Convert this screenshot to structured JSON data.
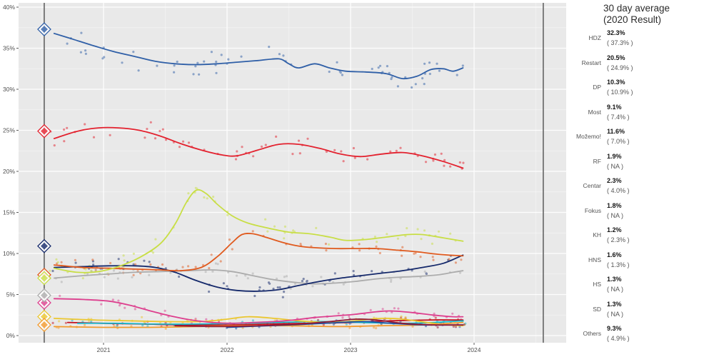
{
  "legend": {
    "title_line1": "30 day average",
    "title_line2": "(2020 Result)"
  },
  "chart_data": {
    "type": "line+scatter",
    "title": "30 day average (2020 Result)",
    "x_ticks": [
      "2021",
      "2022",
      "2023",
      "2024"
    ],
    "y_ticks": [
      "0%",
      "5%",
      "10%",
      "15%",
      "20%",
      "25%",
      "30%",
      "35%",
      "40%"
    ],
    "x_range_years": [
      2020.31,
      2024.75
    ],
    "y_range_pct": [
      0,
      41.3
    ],
    "grid": true,
    "legend_position": "right",
    "election_lines_x": [
      2020.52,
      2024.56
    ],
    "result_2020_x": 2020.52,
    "panel_color": "#e9e9e9",
    "election_line_color": "#636363",
    "series": [
      {
        "name": "HDZ",
        "value_label": "32.3%",
        "result_label": "( 37.3% )",
        "value_pct": 32.3,
        "result_pct": 37.3,
        "color": "#2f5fa7",
        "color_light": "#9fb6d9",
        "points": 62,
        "jitter": 1.7,
        "start": 2020.56,
        "trend": [
          [
            2020.6,
            36.8
          ],
          [
            2020.75,
            36.1
          ],
          [
            2020.92,
            35.3
          ],
          [
            2021.08,
            34.6
          ],
          [
            2021.25,
            34.0
          ],
          [
            2021.42,
            33.4
          ],
          [
            2021.58,
            33.1
          ],
          [
            2021.75,
            33.0
          ],
          [
            2021.92,
            33.1
          ],
          [
            2022.08,
            33.3
          ],
          [
            2022.25,
            33.5
          ],
          [
            2022.42,
            33.7
          ],
          [
            2022.5,
            33.1
          ],
          [
            2022.58,
            32.6
          ],
          [
            2022.71,
            33.1
          ],
          [
            2022.83,
            32.6
          ],
          [
            2022.96,
            32.2
          ],
          [
            2023.12,
            32.1
          ],
          [
            2023.29,
            31.9
          ],
          [
            2023.42,
            31.3
          ],
          [
            2023.54,
            31.6
          ],
          [
            2023.65,
            32.4
          ],
          [
            2023.75,
            32.5
          ],
          [
            2023.83,
            32.2
          ],
          [
            2023.91,
            32.6
          ]
        ]
      },
      {
        "name": "Restart",
        "value_label": "20.5%",
        "result_label": "( 24.9% )",
        "value_pct": 20.5,
        "result_pct": 24.9,
        "color": "#e3212e",
        "color_light": "#f3949e",
        "points": 62,
        "jitter": 1.4,
        "start": 2020.56,
        "trend": [
          [
            2020.6,
            24.0
          ],
          [
            2020.79,
            24.9
          ],
          [
            2020.96,
            25.3
          ],
          [
            2021.12,
            25.3
          ],
          [
            2021.29,
            25.0
          ],
          [
            2021.46,
            24.3
          ],
          [
            2021.62,
            23.4
          ],
          [
            2021.79,
            22.6
          ],
          [
            2021.96,
            22.0
          ],
          [
            2022.08,
            21.9
          ],
          [
            2022.25,
            22.6
          ],
          [
            2022.42,
            23.3
          ],
          [
            2022.58,
            23.3
          ],
          [
            2022.75,
            22.8
          ],
          [
            2022.92,
            22.1
          ],
          [
            2023.08,
            21.8
          ],
          [
            2023.25,
            22.1
          ],
          [
            2023.42,
            22.3
          ],
          [
            2023.58,
            21.9
          ],
          [
            2023.75,
            21.2
          ],
          [
            2023.91,
            20.4
          ]
        ]
      },
      {
        "name": "DP",
        "value_label": "10.3%",
        "result_label": "( 10.9% )",
        "value_pct": 10.3,
        "result_pct": 10.9,
        "color": "#14286a",
        "color_light": "#97a5c6",
        "points": 55,
        "jitter": 1.1,
        "start": 2020.56,
        "trend": [
          [
            2020.6,
            8.3
          ],
          [
            2020.83,
            8.4
          ],
          [
            2021.04,
            8.5
          ],
          [
            2021.25,
            8.5
          ],
          [
            2021.42,
            8.3
          ],
          [
            2021.58,
            7.7
          ],
          [
            2021.75,
            6.7
          ],
          [
            2021.92,
            5.9
          ],
          [
            2022.08,
            5.5
          ],
          [
            2022.25,
            5.4
          ],
          [
            2022.42,
            5.6
          ],
          [
            2022.58,
            6.1
          ],
          [
            2022.75,
            6.6
          ],
          [
            2022.92,
            7.0
          ],
          [
            2023.08,
            7.3
          ],
          [
            2023.25,
            7.6
          ],
          [
            2023.42,
            7.9
          ],
          [
            2023.58,
            8.3
          ],
          [
            2023.75,
            8.8
          ],
          [
            2023.91,
            9.8
          ]
        ]
      },
      {
        "name": "Most",
        "value_label": "9.1%",
        "result_label": "( 7.4% )",
        "value_pct": 9.1,
        "result_pct": 7.4,
        "color": "#e05a1e",
        "color_light": "#f2a88b",
        "points": 58,
        "jitter": 1.1,
        "start": 2020.56,
        "trend": [
          [
            2020.6,
            8.6
          ],
          [
            2020.83,
            8.3
          ],
          [
            2021.04,
            8.2
          ],
          [
            2021.25,
            8.1
          ],
          [
            2021.46,
            8.0
          ],
          [
            2021.62,
            7.9
          ],
          [
            2021.79,
            8.3
          ],
          [
            2021.92,
            9.6
          ],
          [
            2022.04,
            11.3
          ],
          [
            2022.12,
            12.3
          ],
          [
            2022.21,
            12.4
          ],
          [
            2022.33,
            11.9
          ],
          [
            2022.46,
            11.3
          ],
          [
            2022.58,
            10.9
          ],
          [
            2022.71,
            10.7
          ],
          [
            2022.88,
            10.6
          ],
          [
            2023.04,
            10.6
          ],
          [
            2023.21,
            10.6
          ],
          [
            2023.38,
            10.4
          ],
          [
            2023.54,
            10.2
          ],
          [
            2023.71,
            9.9
          ],
          [
            2023.91,
            9.7
          ]
        ]
      },
      {
        "name": "Možemo!",
        "value_label": "11.6%",
        "result_label": "( 7.0% )",
        "value_pct": 11.6,
        "result_pct": 7.0,
        "color": "#c8de45",
        "color_light": "#e7f0ad",
        "points": 58,
        "jitter": 1.3,
        "start": 2020.56,
        "trend": [
          [
            2020.6,
            8.2
          ],
          [
            2020.79,
            7.7
          ],
          [
            2020.96,
            7.8
          ],
          [
            2021.12,
            8.4
          ],
          [
            2021.29,
            9.5
          ],
          [
            2021.46,
            11.2
          ],
          [
            2021.58,
            13.6
          ],
          [
            2021.67,
            16.2
          ],
          [
            2021.75,
            17.7
          ],
          [
            2021.83,
            17.3
          ],
          [
            2021.92,
            16.0
          ],
          [
            2022.04,
            14.6
          ],
          [
            2022.17,
            13.7
          ],
          [
            2022.33,
            13.1
          ],
          [
            2022.5,
            12.6
          ],
          [
            2022.67,
            12.4
          ],
          [
            2022.83,
            12.0
          ],
          [
            2022.96,
            11.6
          ],
          [
            2023.12,
            11.7
          ],
          [
            2023.29,
            12.0
          ],
          [
            2023.46,
            12.3
          ],
          [
            2023.58,
            12.3
          ],
          [
            2023.75,
            11.9
          ],
          [
            2023.91,
            11.5
          ]
        ]
      },
      {
        "name": "RF",
        "value_label": "1.9%",
        "result_label": "( NA )",
        "value_pct": 1.9,
        "result_pct": null,
        "color": "#c40f1e",
        "color_light": null,
        "points": 28,
        "jitter": 0.45,
        "start": 2020.56,
        "trend": [
          [
            2020.71,
            1.6
          ],
          [
            2021.0,
            1.5
          ],
          [
            2021.33,
            1.4
          ],
          [
            2021.67,
            1.3
          ],
          [
            2022.0,
            1.3
          ],
          [
            2022.33,
            1.4
          ],
          [
            2022.67,
            1.5
          ],
          [
            2023.0,
            1.6
          ],
          [
            2023.33,
            1.8
          ],
          [
            2023.67,
            1.9
          ],
          [
            2023.91,
            1.9
          ]
        ]
      },
      {
        "name": "Centar",
        "value_label": "2.3%",
        "result_label": "( 4.0% )",
        "value_pct": 2.3,
        "result_pct": 4.0,
        "color": "#dd3f8e",
        "color_light": "#f0b4d4",
        "points": 55,
        "jitter": 0.55,
        "start": 2020.56,
        "trend": [
          [
            2020.6,
            4.5
          ],
          [
            2020.83,
            4.4
          ],
          [
            2021.04,
            4.2
          ],
          [
            2021.21,
            3.7
          ],
          [
            2021.38,
            3.0
          ],
          [
            2021.54,
            2.4
          ],
          [
            2021.71,
            1.9
          ],
          [
            2021.88,
            1.6
          ],
          [
            2022.04,
            1.5
          ],
          [
            2022.21,
            1.6
          ],
          [
            2022.38,
            1.7
          ],
          [
            2022.54,
            1.9
          ],
          [
            2022.71,
            2.2
          ],
          [
            2022.88,
            2.4
          ],
          [
            2023.04,
            2.6
          ],
          [
            2023.21,
            2.9
          ],
          [
            2023.33,
            3.0
          ],
          [
            2023.5,
            2.8
          ],
          [
            2023.67,
            2.5
          ],
          [
            2023.83,
            2.3
          ],
          [
            2023.91,
            2.3
          ]
        ]
      },
      {
        "name": "Fokus",
        "value_label": "1.8%",
        "result_label": "( NA )",
        "value_pct": 1.8,
        "result_pct": null,
        "color": "#17b4c6",
        "color_light": null,
        "points": 28,
        "jitter": 0.4,
        "start": 2020.7,
        "trend": [
          [
            2020.79,
            1.5
          ],
          [
            2021.08,
            1.5
          ],
          [
            2021.42,
            1.4
          ],
          [
            2021.75,
            1.4
          ],
          [
            2022.08,
            1.5
          ],
          [
            2022.42,
            1.6
          ],
          [
            2022.75,
            1.7
          ],
          [
            2023.08,
            1.6
          ],
          [
            2023.42,
            1.5
          ],
          [
            2023.67,
            1.6
          ],
          [
            2023.91,
            1.8
          ]
        ]
      },
      {
        "name": "KH",
        "value_label": "1.2%",
        "result_label": "( 2.3% )",
        "value_pct": 1.2,
        "result_pct": 2.3,
        "color": "#ebc72f",
        "color_light": "#f5e6a8",
        "points": 38,
        "jitter": 0.5,
        "start": 2020.56,
        "trend": [
          [
            2020.6,
            2.1
          ],
          [
            2020.92,
            1.9
          ],
          [
            2021.21,
            1.8
          ],
          [
            2021.5,
            1.7
          ],
          [
            2021.79,
            1.7
          ],
          [
            2022.0,
            2.0
          ],
          [
            2022.17,
            2.3
          ],
          [
            2022.38,
            2.1
          ],
          [
            2022.58,
            1.8
          ],
          [
            2022.83,
            1.6
          ],
          [
            2023.04,
            1.8
          ],
          [
            2023.25,
            2.1
          ],
          [
            2023.42,
            2.0
          ],
          [
            2023.62,
            1.6
          ],
          [
            2023.79,
            1.3
          ],
          [
            2023.91,
            1.2
          ]
        ]
      },
      {
        "name": "HNS",
        "value_label": "1.6%",
        "result_label": "( 1.3% )",
        "value_pct": 1.6,
        "result_pct": 1.3,
        "color": "#f29a2d",
        "color_light": "#f9d7a6",
        "points": 30,
        "jitter": 0.35,
        "start": 2020.56,
        "trend": [
          [
            2020.6,
            1.1
          ],
          [
            2021.0,
            1.0
          ],
          [
            2021.38,
            1.0
          ],
          [
            2021.75,
            1.1
          ],
          [
            2022.12,
            1.2
          ],
          [
            2022.5,
            1.2
          ],
          [
            2022.88,
            1.1
          ],
          [
            2023.25,
            1.2
          ],
          [
            2023.58,
            1.3
          ],
          [
            2023.91,
            1.6
          ]
        ]
      },
      {
        "name": "HS",
        "value_label": "1.3%",
        "result_label": "( NA )",
        "value_pct": 1.3,
        "result_pct": null,
        "color": "#1d50a2",
        "color_light": null,
        "points": 22,
        "jitter": 0.35,
        "start": 2021.95,
        "trend": [
          [
            2022.0,
            1.0
          ],
          [
            2022.33,
            1.2
          ],
          [
            2022.67,
            1.4
          ],
          [
            2022.92,
            1.6
          ],
          [
            2023.12,
            1.7
          ],
          [
            2023.33,
            1.5
          ],
          [
            2023.58,
            1.3
          ],
          [
            2023.91,
            1.3
          ]
        ]
      },
      {
        "name": "SD",
        "value_label": "1.3%",
        "result_label": "( NA )",
        "value_pct": 1.3,
        "result_pct": null,
        "color": "#8e1a39",
        "color_light": null,
        "points": 24,
        "jitter": 0.4,
        "start": 2021.5,
        "trend": [
          [
            2021.58,
            1.2
          ],
          [
            2021.92,
            1.1
          ],
          [
            2022.25,
            1.2
          ],
          [
            2022.58,
            1.4
          ],
          [
            2022.83,
            1.7
          ],
          [
            2023.04,
            2.0
          ],
          [
            2023.21,
            1.9
          ],
          [
            2023.42,
            1.5
          ],
          [
            2023.67,
            1.3
          ],
          [
            2023.91,
            1.3
          ]
        ]
      },
      {
        "name": "Others",
        "value_label": "9.3%",
        "result_label": "( 4.9% )",
        "value_pct": 9.3,
        "result_pct": 4.9,
        "color": "#acacac",
        "color_light": "#d3d3d3",
        "points": 48,
        "jitter": 1.0,
        "start": 2020.56,
        "trend": [
          [
            2020.6,
            7.0
          ],
          [
            2020.83,
            7.3
          ],
          [
            2021.04,
            7.5
          ],
          [
            2021.25,
            7.7
          ],
          [
            2021.46,
            7.8
          ],
          [
            2021.67,
            7.9
          ],
          [
            2021.88,
            8.0
          ],
          [
            2022.04,
            7.8
          ],
          [
            2022.21,
            7.3
          ],
          [
            2022.38,
            6.8
          ],
          [
            2022.54,
            6.5
          ],
          [
            2022.71,
            6.3
          ],
          [
            2022.88,
            6.4
          ],
          [
            2023.04,
            6.6
          ],
          [
            2023.21,
            6.9
          ],
          [
            2023.38,
            7.1
          ],
          [
            2023.54,
            7.2
          ],
          [
            2023.71,
            7.4
          ],
          [
            2023.83,
            7.7
          ],
          [
            2023.91,
            7.9
          ]
        ]
      }
    ]
  }
}
